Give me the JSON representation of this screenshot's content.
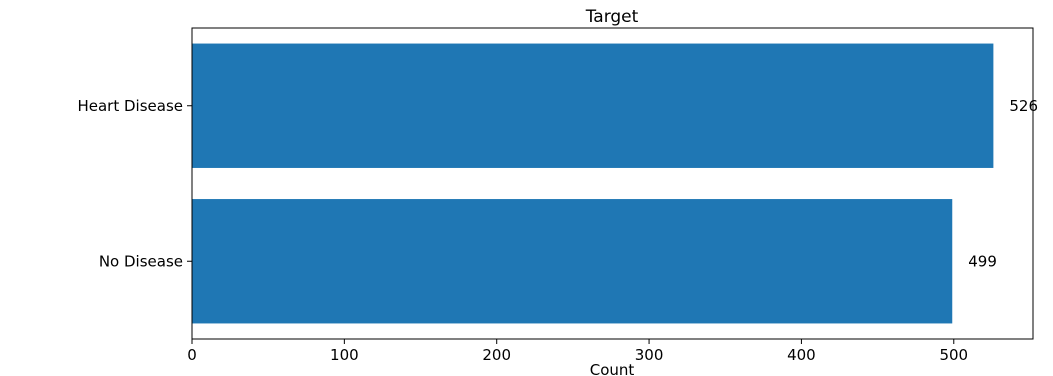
{
  "chart_data": {
    "type": "bar",
    "orientation": "horizontal",
    "title": "Target",
    "categories": [
      "Heart Disease",
      "No Disease"
    ],
    "values": [
      526,
      499
    ],
    "value_labels": [
      "526",
      "499"
    ],
    "xlabel": "Count",
    "ylabel": "",
    "xlim": [
      0,
      552
    ],
    "xticks": [
      0,
      100,
      200,
      300,
      400,
      500
    ],
    "grid": false,
    "bar_color": "#1f77b4"
  }
}
